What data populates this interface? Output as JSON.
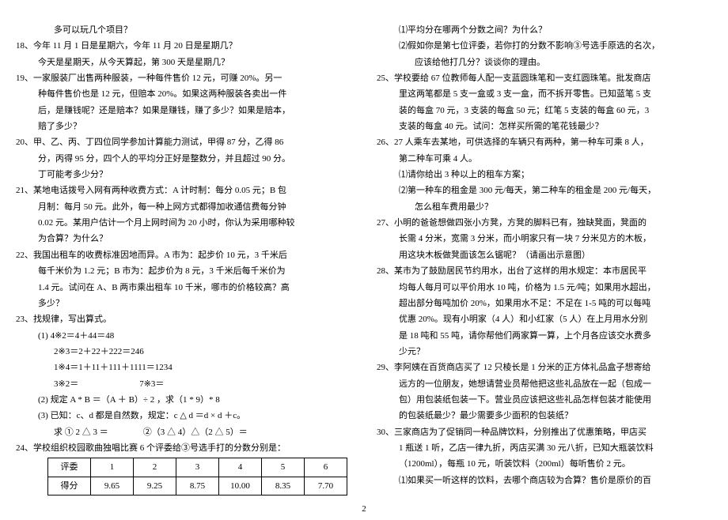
{
  "left": {
    "cont17": "多可以玩几个项目？",
    "q18a": "18、今年 11 月 1 日是星期六，今年 11 月 20 日是星期几？",
    "q18b": "今天是星期天，从今天算起，第 300 天是星期几？",
    "q19a": "19、一家服装厂出售两种服装，一种每件售价 12 元，可赚 20%。另一",
    "q19b": "种每件售价也是 12 元，但赔本 20%。如果这两种服装各卖出一件",
    "q19c": "后，是赚钱呢？还是赔本？如果是赚钱，赚了多少？如果是赔本，",
    "q19d": "赔了多少？",
    "q20a": "20、甲、乙、丙、丁四位同学参加计算能力测试，甲得 87 分，乙得 86",
    "q20b": "分，丙得 95 分，四个人的平均分正好是整数分，并且超过 90 分。",
    "q20c": "丁可能考多少分？",
    "q21a": "21、某地电话拨号入网有两种收费方式：A 计时制：每分 0.05 元；B 包",
    "q21b": "月制：每月 50 元。此外，每一种上网方式都得加收通信费每分钟",
    "q21c": "0.02 元。某用户估计一个月上网时间为 20 小时，你认为采用哪种较",
    "q21d": "为合算？为什么？",
    "q22a": "22、我国出租车的收费标准因地而异。A 市为：起步价 10 元，3 千米后",
    "q22b": "每千米价为 1.2 元；B 市为：起步价为 8 元，3 千米后每千米价为",
    "q22c": "1.4 元。试问在 A、B 两市乘出租车 10 千米，哪市的价格较高？高",
    "q22d": "多少？",
    "q23": "23、找规律，写出算式。",
    "q23_1a": "(1) 4※2＝4＋44＝48",
    "q23_1b": "2※3＝2＋22＋222＝246",
    "q23_1c": "1※4＝1＋11＋111＋1111＝1234",
    "q23_1d": "3※2＝　　　　　　　7※3＝",
    "q23_2": "(2) 规定 A * B ＝（A ＋ B）÷ 2 ，求（1 * 9）* 8",
    "q23_3a": "(3) 已知：c、d 都是自然数，规定：c △ d ＝d × d ＋c。",
    "q23_3b": "求 ① 2 △ 3 ＝　　　　②（3 △ 4）△（2 △ 5）＝",
    "q24": "24、学校组织校园歌曲独唱比赛 6 个评委给③号选手打的分数分别是：",
    "table": {
      "header": [
        "评委",
        "1",
        "2",
        "3",
        "4",
        "5",
        "6"
      ],
      "row": [
        "得分",
        "9.65",
        "9.25",
        "8.75",
        "10.00",
        "8.35",
        "7.70"
      ]
    }
  },
  "right": {
    "q24_1": "⑴平均分在哪两个分数之间？为什么？",
    "q24_2a": "⑵假如你是第七位评委，若你打的分数不影响③号选手原选的名次，",
    "q24_2b": "应该给他打几分？谈谈你的理由。",
    "q25a": "25、学校要给 67 位教师每人配一支蓝圆珠笔和一支红圆珠笔。批发商店",
    "q25b": "里这两笔都是 5 支一盒或 3 支一盒，而不拆开零售。已知蓝笔 5 支",
    "q25c": "装的每盒 70 元，3 支装的每盒 50 元；红笔 5 支装的每盒 60 元，3",
    "q25d": "支装的每盒 40 元。试问：怎样买所需的笔花钱最少？",
    "q26a": "26、27 人乘车去某地，可供选择的车辆只有两种，第一种车可乘 8 人，",
    "q26b": "第二种车可乘 4 人。",
    "q26_1": "⑴请你给出 3 种以上的租车方案；",
    "q26_2a": "⑵第一种车的租金是 300 元/每天，第二种车的租金是 200 元/每天，",
    "q26_2b": "怎么租车费用最少？",
    "q27a": "27、小明的爸爸想做四张小方凳，方凳的脚料已有，独缺凳面，凳面的",
    "q27b": "长需 4 分米，宽需 3 分米，而小明家只有一块 7 分米见方的木板，",
    "q27c": "用这块木板做凳面该怎么锯呢？（请画出示意图）",
    "q28a": "28、某市为了鼓励居民节约用水，出台了这样的用水规定：本市居民平",
    "q28b": "均每人每月可以平价用水 10 吨，价格为 1.5 元/吨；如果用水超出，",
    "q28c": "超出部分每吨加价 20%，如果用水不足：不足在 1-5 吨的可以每吨",
    "q28d": "优惠 20%。现有小明家（4 人）和小红家（5 人）在上月用水分别",
    "q28e": "是 18 吨和 55 吨，请你帮他们两家算一算，上个月各应该交水费多",
    "q28f": "少元？",
    "q29a": "29、李阿姨在百货商店买了 12 只棱长是 1 分米的正方体礼品盒子想寄给",
    "q29b": "远方的一位朋友，她想请营业员帮他把这些礼品放在一起（包成一",
    "q29c": "包）用包装纸包装一下。营业员应该把这些礼品怎样包装才能使用",
    "q29d": "的包装纸最少？最少需要多少面积的包装纸？",
    "q30a": "30、三家商店为了促销同一种品牌饮料，分别推出了优惠策略，甲店买",
    "q30b": "1 瓶送 1 听，乙店一律九折，丙店买满 30 元八折，已知大瓶装饮料",
    "q30c": "（1200ml），每瓶 10 元，听装饮料（200ml）每听售价 2 元。",
    "q30_1": "⑴如果买一听这样的饮料，去哪个商店较为合算？售价是原价的百"
  },
  "pageNum": "2"
}
